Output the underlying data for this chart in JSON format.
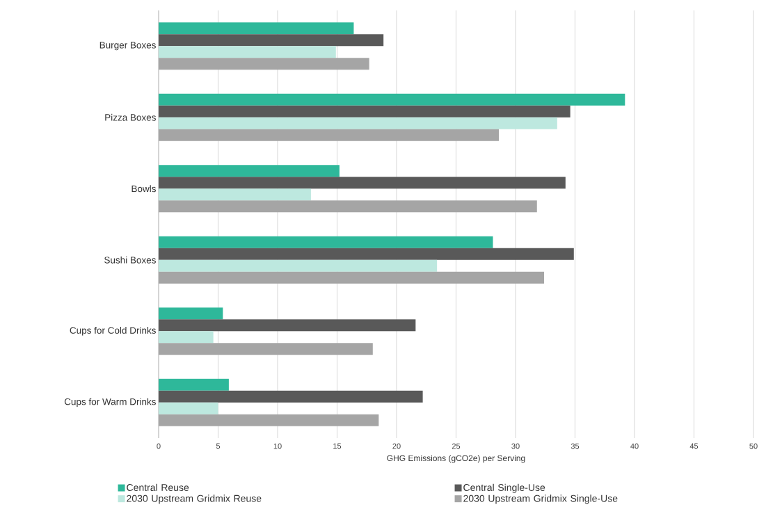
{
  "chart_data": {
    "type": "bar",
    "orientation": "horizontal",
    "categories": [
      "Burger Boxes",
      "Pizza Boxes",
      "Bowls",
      "Sushi Boxes",
      "Cups for Cold Drinks",
      "Cups for Warm Drinks"
    ],
    "series": [
      {
        "name": "Central Reuse",
        "color": "#2eb89a",
        "values": [
          16.4,
          39.2,
          15.2,
          28.1,
          5.4,
          5.9
        ]
      },
      {
        "name": "Central Single-Use",
        "color": "#595959",
        "values": [
          18.9,
          34.6,
          34.2,
          34.9,
          21.6,
          22.2
        ]
      },
      {
        "name": "2030 Upstream Gridmix Reuse",
        "color": "#bde8df",
        "values": [
          14.9,
          33.5,
          12.8,
          23.4,
          4.6,
          5.0
        ]
      },
      {
        "name": "2030 Upstream Gridmix Single-Use",
        "color": "#a5a5a5",
        "values": [
          17.7,
          28.6,
          31.8,
          32.4,
          18.0,
          18.5
        ]
      }
    ],
    "xlim": [
      0,
      50
    ],
    "xticks": [
      0,
      5,
      10,
      15,
      20,
      25,
      30,
      35,
      40,
      45,
      50
    ],
    "xlabel": "GHG Emissions (gCO2e) per Serving",
    "grid": "x",
    "legend": "bottom"
  }
}
